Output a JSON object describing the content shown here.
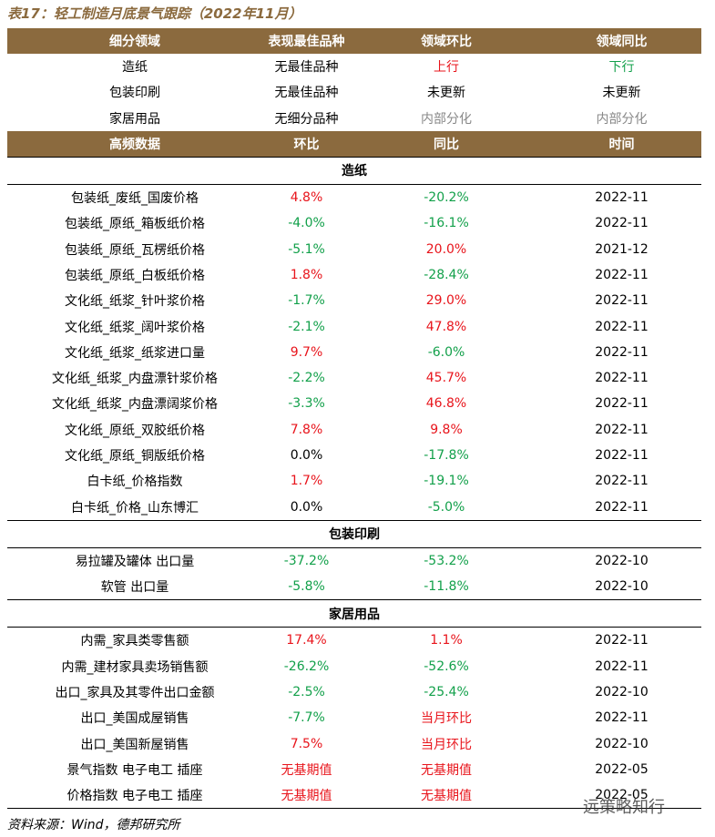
{
  "title": "表17：轻工制造月底景气跟踪（2022年11月）",
  "summary": {
    "header": [
      "细分领域",
      "表现最佳品种",
      "领域环比",
      "领域同比"
    ],
    "rows": [
      [
        "造纸",
        "无最佳品种",
        "上行",
        "下行"
      ],
      [
        "包装印刷",
        "无最佳品种",
        "未更新",
        "未更新"
      ],
      [
        "家居用品",
        "无细分品种",
        "内部分化",
        "内部分化"
      ]
    ]
  },
  "detail": {
    "header": [
      "高频数据",
      "环比",
      "同比",
      "时间"
    ],
    "sections": [
      {
        "name": "造纸",
        "rows": [
          [
            "包装纸_废纸_国废价格",
            "4.8%",
            "-20.2%",
            "2022-11"
          ],
          [
            "包装纸_原纸_箱板纸价格",
            "-4.0%",
            "-16.1%",
            "2022-11"
          ],
          [
            "包装纸_原纸_瓦楞纸价格",
            "-5.1%",
            "20.0%",
            "2021-12"
          ],
          [
            "包装纸_原纸_白板纸价格",
            "1.8%",
            "-28.4%",
            "2022-11"
          ],
          [
            "文化纸_纸浆_针叶浆价格",
            "-1.7%",
            "29.0%",
            "2022-11"
          ],
          [
            "文化纸_纸浆_阔叶浆价格",
            "-2.1%",
            "47.8%",
            "2022-11"
          ],
          [
            "文化纸_纸浆_纸浆进口量",
            "9.7%",
            "-6.0%",
            "2022-11"
          ],
          [
            "文化纸_纸浆_内盘漂针浆价格",
            "-2.2%",
            "45.7%",
            "2022-11"
          ],
          [
            "文化纸_纸浆_内盘漂阔浆价格",
            "-3.3%",
            "46.8%",
            "2022-11"
          ],
          [
            "文化纸_原纸_双胶纸价格",
            "7.8%",
            "9.8%",
            "2022-11"
          ],
          [
            "文化纸_原纸_铜版纸价格",
            "0.0%",
            "-17.8%",
            "2022-11"
          ],
          [
            "白卡纸_价格指数",
            "1.7%",
            "-19.1%",
            "2022-11"
          ],
          [
            "白卡纸_价格_山东博汇",
            "0.0%",
            "-5.0%",
            "2022-11"
          ]
        ]
      },
      {
        "name": "包装印刷",
        "rows": [
          [
            "易拉罐及罐体 出口量",
            "-37.2%",
            "-53.2%",
            "2022-10"
          ],
          [
            "软管 出口量",
            "-5.8%",
            "-11.8%",
            "2022-10"
          ]
        ]
      },
      {
        "name": "家居用品",
        "rows": [
          [
            "内需_家具类零售额",
            "17.4%",
            "1.1%",
            "2022-11"
          ],
          [
            "内需_建材家具卖场销售额",
            "-26.2%",
            "-52.6%",
            "2022-11"
          ],
          [
            "出口_家具及其零件出口金额",
            "-2.5%",
            "-25.4%",
            "2022-10"
          ],
          [
            "出口_美国成屋销售",
            "-7.7%",
            "当月环比",
            "2022-11"
          ],
          [
            "出口_美国新屋销售",
            "7.5%",
            "当月环比",
            "2022-10"
          ],
          [
            "景气指数 电子电工 插座",
            "无基期值",
            "无基期值",
            "2022-05"
          ],
          [
            "价格指数 电子电工 插座",
            "无基期值",
            "无基期值",
            "2022-05"
          ]
        ]
      }
    ]
  },
  "source": "资料来源：Wind，德邦研究所",
  "watermark": "远策略知行"
}
